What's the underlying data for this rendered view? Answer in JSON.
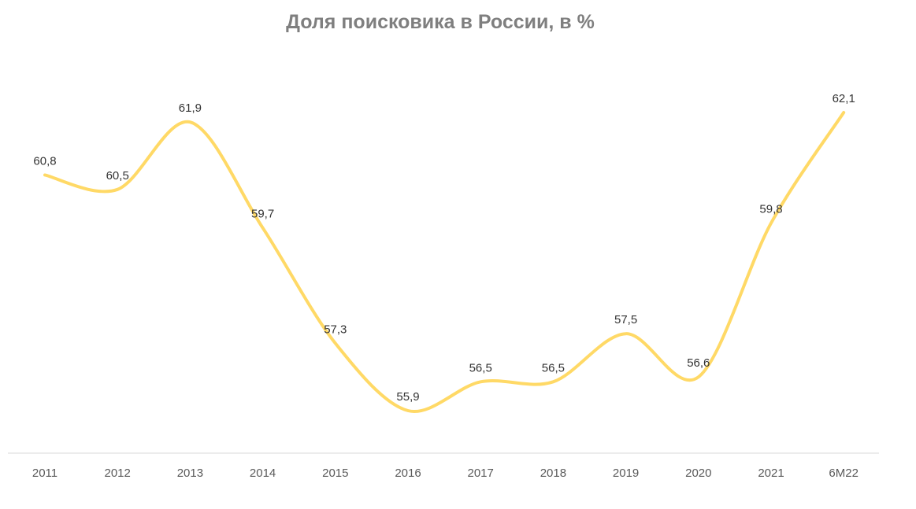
{
  "chart_data": {
    "type": "line",
    "title": "Доля поисковика в России, в %",
    "xlabel": "",
    "ylabel": "",
    "categories": [
      "2011",
      "2012",
      "2013",
      "2014",
      "2015",
      "2016",
      "2017",
      "2018",
      "2019",
      "2020",
      "2021",
      "6M22"
    ],
    "series": [
      {
        "values": [
          60.8,
          60.5,
          61.9,
          59.7,
          57.3,
          55.9,
          56.5,
          56.5,
          57.5,
          56.6,
          59.8,
          62.1
        ],
        "labels": [
          "60,8",
          "60,5",
          "61,9",
          "59,7",
          "57,3",
          "55,9",
          "56,5",
          "56,5",
          "57,5",
          "56,6",
          "59,8",
          "62,1"
        ],
        "color": "#FFD966"
      }
    ],
    "smooth": true,
    "grid": false,
    "legend": "none"
  }
}
